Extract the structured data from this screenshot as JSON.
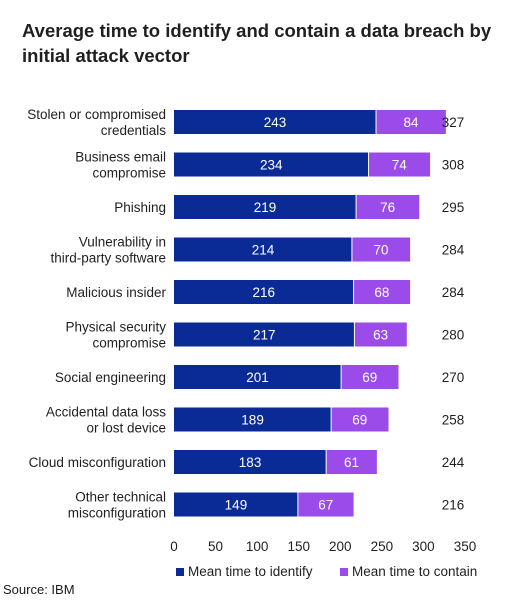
{
  "chart_data": {
    "type": "bar",
    "orientation": "horizontal",
    "stacked": true,
    "title": "Average time to identify and contain a data breach by initial attack vector",
    "categories": [
      [
        "Stolen or compromised",
        "credentials"
      ],
      [
        "Business email",
        "compromise"
      ],
      [
        "Phishing"
      ],
      [
        "Vulnerability in",
        "third-party software"
      ],
      [
        "Malicious insider"
      ],
      [
        "Physical security",
        "compromise"
      ],
      [
        "Social engineering"
      ],
      [
        "Accidental data loss",
        "or lost device"
      ],
      [
        "Cloud misconfiguration"
      ],
      [
        "Other technical",
        "misconfiguration"
      ]
    ],
    "series": [
      {
        "name": "Mean time to identify",
        "color": "#0a2b96",
        "values": [
          243,
          234,
          219,
          214,
          216,
          217,
          201,
          189,
          183,
          149
        ]
      },
      {
        "name": "Mean time to contain",
        "color": "#9a4bea",
        "values": [
          84,
          74,
          76,
          70,
          68,
          63,
          69,
          69,
          61,
          67
        ]
      }
    ],
    "totals": [
      327,
      308,
      295,
      284,
      284,
      280,
      270,
      258,
      244,
      216
    ],
    "xlim": [
      0,
      350
    ],
    "xticks": [
      0,
      50,
      100,
      150,
      200,
      250,
      300,
      350
    ],
    "grid": false,
    "legend_position": "bottom"
  },
  "source": "Source: IBM"
}
